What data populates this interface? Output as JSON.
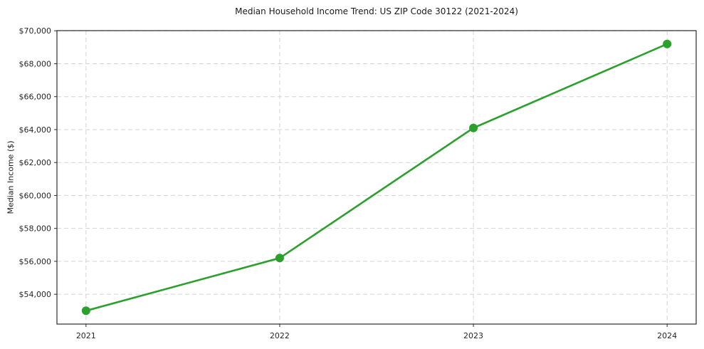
{
  "chart_data": {
    "type": "line",
    "title": "Median Household Income Trend: US ZIP Code 30122 (2021-2024)",
    "xlabel": "",
    "ylabel": "Median Income ($)",
    "x": [
      2021,
      2022,
      2023,
      2024
    ],
    "series": [
      {
        "name": "Median Household Income",
        "values": [
          53000,
          56200,
          64100,
          69200
        ]
      }
    ],
    "xticklabels": [
      "2021",
      "2022",
      "2023",
      "2024"
    ],
    "yticks": [
      54000,
      56000,
      58000,
      60000,
      62000,
      64000,
      66000,
      68000,
      70000
    ],
    "yticklabels": [
      "$54,000",
      "$56,000",
      "$58,000",
      "$60,000",
      "$62,000",
      "$64,000",
      "$66,000",
      "$68,000",
      "$70,000"
    ],
    "xlim": [
      2020.85,
      2024.15
    ],
    "ylim": [
      52190,
      70010
    ],
    "grid": true,
    "grid_style": "dashed",
    "legend": "none",
    "marker": "circle",
    "marker_size": 6,
    "line_width": 2.6
  },
  "colors": {
    "line": "#2ca02c",
    "grid": "#d3d3d3",
    "spine": "#2b2b2b",
    "text": "#262626",
    "background": "#ffffff"
  }
}
